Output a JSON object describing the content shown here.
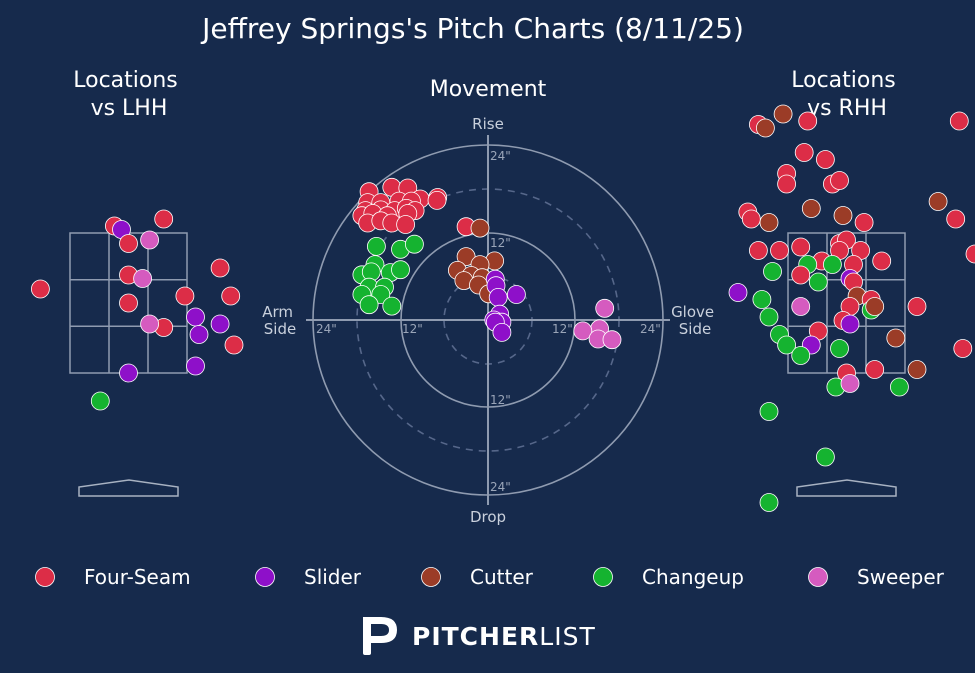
{
  "title": "Jeffrey Springs's Pitch Charts (8/11/25)",
  "panels": {
    "lhh": "Locations\nvs LHH",
    "movement": "Movement",
    "rhh": "Locations\nvs RHH"
  },
  "movement_axes": {
    "top": "Rise",
    "bottom": "Drop",
    "left": "Arm\nSide",
    "right": "Glove\nSide",
    "ring_labels": [
      "24\"",
      "12\"",
      "12\"",
      "24\"",
      "12\"",
      "24\"",
      "12\"",
      "24\""
    ]
  },
  "pitch_types": [
    {
      "name": "Four-Seam",
      "color": "#dc2d47"
    },
    {
      "name": "Slider",
      "color": "#8e10c9"
    },
    {
      "name": "Cutter",
      "color": "#9b3c27"
    },
    {
      "name": "Changeup",
      "color": "#15b330"
    },
    {
      "name": "Sweeper",
      "color": "#d55bbf"
    }
  ],
  "brand": {
    "bold": "PITCHER",
    "light": "LIST"
  },
  "chart_data": [
    {
      "type": "scatter",
      "title": "Locations vs LHH",
      "x_unit": "plate_x (ft, catcher view)",
      "y_unit": "plate_z (ft)",
      "strike_zone": {
        "x": [
          -0.83,
          0.83
        ],
        "z": [
          1.5,
          3.5
        ]
      },
      "points": [
        {
          "p": "Four-Seam",
          "x": -0.2,
          "z": 3.6
        },
        {
          "p": "Slider",
          "x": -0.1,
          "z": 3.55
        },
        {
          "p": "Four-Seam",
          "x": 0.5,
          "z": 3.7
        },
        {
          "p": "Four-Seam",
          "x": 0.0,
          "z": 3.35
        },
        {
          "p": "Sweeper",
          "x": 0.3,
          "z": 3.4
        },
        {
          "p": "Four-Seam",
          "x": 1.3,
          "z": 3.0
        },
        {
          "p": "Four-Seam",
          "x": -0.0,
          "z": 2.9
        },
        {
          "p": "Sweeper",
          "x": 0.2,
          "z": 2.85
        },
        {
          "p": "Four-Seam",
          "x": 0.8,
          "z": 2.6
        },
        {
          "p": "Four-Seam",
          "x": 1.45,
          "z": 2.6
        },
        {
          "p": "Four-Seam",
          "x": -0.0,
          "z": 2.5
        },
        {
          "p": "Slider",
          "x": 0.95,
          "z": 2.3
        },
        {
          "p": "Four-Seam",
          "x": 0.5,
          "z": 2.15
        },
        {
          "p": "Sweeper",
          "x": 0.3,
          "z": 2.2
        },
        {
          "p": "Slider",
          "x": 1.3,
          "z": 2.2
        },
        {
          "p": "Slider",
          "x": 1.0,
          "z": 2.05
        },
        {
          "p": "Four-Seam",
          "x": 1.6,
          "z": 1.9
        },
        {
          "p": "Slider",
          "x": 0.95,
          "z": 1.6
        },
        {
          "p": "Slider",
          "x": 0.0,
          "z": 1.5
        },
        {
          "p": "Changeup",
          "x": -0.4,
          "z": 1.1
        },
        {
          "p": "Four-Seam",
          "x": -1.25,
          "z": 2.7
        }
      ]
    },
    {
      "type": "scatter",
      "title": "Movement",
      "x_unit": "horizontal break (in)",
      "y_unit": "induced vertical break (in)",
      "xlim": [
        -24,
        24
      ],
      "ylim": [
        -24,
        24
      ],
      "points": [
        {
          "p": "Four-Seam",
          "x": -16.3,
          "y": 17.6
        },
        {
          "p": "Four-Seam",
          "x": -13.2,
          "y": 18.2
        },
        {
          "p": "Four-Seam",
          "x": -11.0,
          "y": 18.1
        },
        {
          "p": "Four-Seam",
          "x": -9.3,
          "y": 16.6
        },
        {
          "p": "Four-Seam",
          "x": -6.9,
          "y": 16.8
        },
        {
          "p": "Four-Seam",
          "x": -7.0,
          "y": 16.4
        },
        {
          "p": "Four-Seam",
          "x": -16.5,
          "y": 16.1
        },
        {
          "p": "Four-Seam",
          "x": -14.7,
          "y": 16.1
        },
        {
          "p": "Four-Seam",
          "x": -12.2,
          "y": 16.3
        },
        {
          "p": "Four-Seam",
          "x": -10.5,
          "y": 16.3
        },
        {
          "p": "Four-Seam",
          "x": -16.8,
          "y": 15.0
        },
        {
          "p": "Four-Seam",
          "x": -14.7,
          "y": 15.1
        },
        {
          "p": "Four-Seam",
          "x": -12.8,
          "y": 15.0
        },
        {
          "p": "Four-Seam",
          "x": -11.2,
          "y": 15.3
        },
        {
          "p": "Four-Seam",
          "x": -10.0,
          "y": 15.0
        },
        {
          "p": "Four-Seam",
          "x": -17.3,
          "y": 14.3
        },
        {
          "p": "Four-Seam",
          "x": -15.8,
          "y": 14.6
        },
        {
          "p": "Four-Seam",
          "x": -13.8,
          "y": 14.3
        },
        {
          "p": "Four-Seam",
          "x": -11.0,
          "y": 14.6
        },
        {
          "p": "Four-Seam",
          "x": -16.5,
          "y": 13.3
        },
        {
          "p": "Four-Seam",
          "x": -14.7,
          "y": 13.6
        },
        {
          "p": "Four-Seam",
          "x": -13.2,
          "y": 13.3
        },
        {
          "p": "Four-Seam",
          "x": -11.3,
          "y": 13.1
        },
        {
          "p": "Four-Seam",
          "x": -3.0,
          "y": 12.8
        },
        {
          "p": "Cutter",
          "x": -1.1,
          "y": 12.6
        },
        {
          "p": "Cutter",
          "x": -3.0,
          "y": 8.7
        },
        {
          "p": "Cutter",
          "x": 0.9,
          "y": 8.1
        },
        {
          "p": "Cutter",
          "x": -1.1,
          "y": 7.6
        },
        {
          "p": "Cutter",
          "x": -4.2,
          "y": 6.8
        },
        {
          "p": "Cutter",
          "x": -2.3,
          "y": 6.1
        },
        {
          "p": "Cutter",
          "x": -0.8,
          "y": 5.8
        },
        {
          "p": "Cutter",
          "x": -3.3,
          "y": 5.4
        },
        {
          "p": "Cutter",
          "x": -1.3,
          "y": 4.8
        },
        {
          "p": "Cutter",
          "x": 0.1,
          "y": 3.6
        },
        {
          "p": "Slider",
          "x": 1.0,
          "y": 5.6
        },
        {
          "p": "Slider",
          "x": 1.1,
          "y": 4.7
        },
        {
          "p": "Slider",
          "x": 1.4,
          "y": 3.1
        },
        {
          "p": "Slider",
          "x": 3.9,
          "y": 3.5
        },
        {
          "p": "Slider",
          "x": 1.6,
          "y": 0.8
        },
        {
          "p": "Slider",
          "x": 0.8,
          "y": 0.0
        },
        {
          "p": "Slider",
          "x": 1.9,
          "y": -0.3
        },
        {
          "p": "Slider",
          "x": 1.0,
          "y": -0.3
        },
        {
          "p": "Slider",
          "x": 1.9,
          "y": -1.7
        },
        {
          "p": "Changeup",
          "x": -15.3,
          "y": 10.1
        },
        {
          "p": "Changeup",
          "x": -12.0,
          "y": 9.7
        },
        {
          "p": "Changeup",
          "x": -10.1,
          "y": 10.4
        },
        {
          "p": "Changeup",
          "x": -15.5,
          "y": 7.6
        },
        {
          "p": "Changeup",
          "x": -17.3,
          "y": 6.2
        },
        {
          "p": "Changeup",
          "x": -13.4,
          "y": 6.5
        },
        {
          "p": "Changeup",
          "x": -12.0,
          "y": 6.9
        },
        {
          "p": "Changeup",
          "x": -16.0,
          "y": 6.6
        },
        {
          "p": "Changeup",
          "x": -16.3,
          "y": 4.5
        },
        {
          "p": "Changeup",
          "x": -14.2,
          "y": 4.5
        },
        {
          "p": "Changeup",
          "x": -17.3,
          "y": 3.5
        },
        {
          "p": "Changeup",
          "x": -14.7,
          "y": 3.5
        },
        {
          "p": "Changeup",
          "x": -16.3,
          "y": 2.1
        },
        {
          "p": "Changeup",
          "x": -13.2,
          "y": 1.9
        },
        {
          "p": "Sweeper",
          "x": 16.0,
          "y": 1.6
        },
        {
          "p": "Sweeper",
          "x": 15.3,
          "y": -1.2
        },
        {
          "p": "Sweeper",
          "x": 13.0,
          "y": -1.5
        },
        {
          "p": "Sweeper",
          "x": 15.1,
          "y": -2.6
        },
        {
          "p": "Sweeper",
          "x": 17.0,
          "y": -2.7
        }
      ]
    },
    {
      "type": "scatter",
      "title": "Locations vs RHH",
      "x_unit": "plate_x (ft, catcher view)",
      "y_unit": "plate_z (ft)",
      "strike_zone": {
        "x": [
          -0.83,
          0.83
        ],
        "z": [
          1.5,
          3.5
        ]
      },
      "points": [
        {
          "p": "Cutter",
          "x": -0.9,
          "z": 5.2
        },
        {
          "p": "Four-Seam",
          "x": -1.25,
          "z": 5.05
        },
        {
          "p": "Cutter",
          "x": -1.15,
          "z": 5.0
        },
        {
          "p": "Four-Seam",
          "x": -0.55,
          "z": 5.1
        },
        {
          "p": "Four-Seam",
          "x": 1.6,
          "z": 5.1
        },
        {
          "p": "Four-Seam",
          "x": -0.6,
          "z": 4.65
        },
        {
          "p": "Four-Seam",
          "x": -0.3,
          "z": 4.55
        },
        {
          "p": "Four-Seam",
          "x": -0.85,
          "z": 4.35
        },
        {
          "p": "Four-Seam",
          "x": -0.85,
          "z": 4.2
        },
        {
          "p": "Four-Seam",
          "x": -0.2,
          "z": 4.2
        },
        {
          "p": "Four-Seam",
          "x": -0.1,
          "z": 4.25
        },
        {
          "p": "Cutter",
          "x": 1.3,
          "z": 3.95
        },
        {
          "p": "Cutter",
          "x": -0.5,
          "z": 3.85
        },
        {
          "p": "Cutter",
          "x": -0.05,
          "z": 3.75
        },
        {
          "p": "Four-Seam",
          "x": -1.4,
          "z": 3.8
        },
        {
          "p": "Four-Seam",
          "x": 0.25,
          "z": 3.65
        },
        {
          "p": "Four-Seam",
          "x": 1.55,
          "z": 3.7
        },
        {
          "p": "Cutter",
          "x": -1.1,
          "z": 3.65
        },
        {
          "p": "Four-Seam",
          "x": -1.35,
          "z": 3.7
        },
        {
          "p": "Four-Seam",
          "x": -0.1,
          "z": 3.35
        },
        {
          "p": "Four-Seam",
          "x": 0.0,
          "z": 3.4
        },
        {
          "p": "Four-Seam",
          "x": -1.25,
          "z": 3.25
        },
        {
          "p": "Four-Seam",
          "x": -0.95,
          "z": 3.25
        },
        {
          "p": "Four-Seam",
          "x": -0.65,
          "z": 3.3
        },
        {
          "p": "Four-Seam",
          "x": -0.1,
          "z": 3.25
        },
        {
          "p": "Four-Seam",
          "x": 0.2,
          "z": 3.25
        },
        {
          "p": "Four-Seam",
          "x": 0.5,
          "z": 3.1
        },
        {
          "p": "Four-Seam",
          "x": 2.25,
          "z": 3.2
        },
        {
          "p": "Four-Seam",
          "x": -0.35,
          "z": 3.1
        },
        {
          "p": "Four-Seam",
          "x": 0.1,
          "z": 3.05
        },
        {
          "p": "Changeup",
          "x": -0.2,
          "z": 3.05
        },
        {
          "p": "Changeup",
          "x": -0.55,
          "z": 3.05
        },
        {
          "p": "Changeup",
          "x": -1.05,
          "z": 2.95
        },
        {
          "p": "Four-Seam",
          "x": -0.65,
          "z": 2.9
        },
        {
          "p": "Slider",
          "x": 0.05,
          "z": 2.85
        },
        {
          "p": "Four-Seam",
          "x": 0.1,
          "z": 2.8
        },
        {
          "p": "Changeup",
          "x": -0.4,
          "z": 2.8
        },
        {
          "p": "Cutter",
          "x": 0.15,
          "z": 2.6
        },
        {
          "p": "Four-Seam",
          "x": 0.35,
          "z": 2.55
        },
        {
          "p": "Slider",
          "x": -1.75,
          "z": 2.65
        },
        {
          "p": "Changeup",
          "x": -1.2,
          "z": 2.55
        },
        {
          "p": "Sweeper",
          "x": -0.65,
          "z": 2.45
        },
        {
          "p": "Four-Seam",
          "x": 0.05,
          "z": 2.45
        },
        {
          "p": "Changeup",
          "x": 0.35,
          "z": 2.4
        },
        {
          "p": "Cutter",
          "x": 0.4,
          "z": 2.45
        },
        {
          "p": "Four-Seam",
          "x": 1.0,
          "z": 2.45
        },
        {
          "p": "Changeup",
          "x": -1.1,
          "z": 2.3
        },
        {
          "p": "Four-Seam",
          "x": -0.05,
          "z": 2.25
        },
        {
          "p": "Slider",
          "x": 0.05,
          "z": 2.2
        },
        {
          "p": "Changeup",
          "x": -0.95,
          "z": 2.05
        },
        {
          "p": "Four-Seam",
          "x": -0.4,
          "z": 2.1
        },
        {
          "p": "Cutter",
          "x": 0.7,
          "z": 2.0
        },
        {
          "p": "Slider",
          "x": -0.5,
          "z": 1.9
        },
        {
          "p": "Changeup",
          "x": -0.85,
          "z": 1.9
        },
        {
          "p": "Changeup",
          "x": -0.1,
          "z": 1.85
        },
        {
          "p": "Four-Seam",
          "x": 1.65,
          "z": 1.85
        },
        {
          "p": "Changeup",
          "x": -0.65,
          "z": 1.75
        },
        {
          "p": "Cutter",
          "x": 1.0,
          "z": 1.55
        },
        {
          "p": "Four-Seam",
          "x": -0.0,
          "z": 1.5
        },
        {
          "p": "Four-Seam",
          "x": 0.4,
          "z": 1.55
        },
        {
          "p": "Changeup",
          "x": -0.15,
          "z": 1.3
        },
        {
          "p": "Sweeper",
          "x": 0.05,
          "z": 1.35
        },
        {
          "p": "Changeup",
          "x": 0.75,
          "z": 1.3
        },
        {
          "p": "Changeup",
          "x": -1.1,
          "z": 0.95
        },
        {
          "p": "Changeup",
          "x": -0.3,
          "z": 0.3
        },
        {
          "p": "Changeup",
          "x": -1.1,
          "z": -0.35
        }
      ]
    }
  ]
}
